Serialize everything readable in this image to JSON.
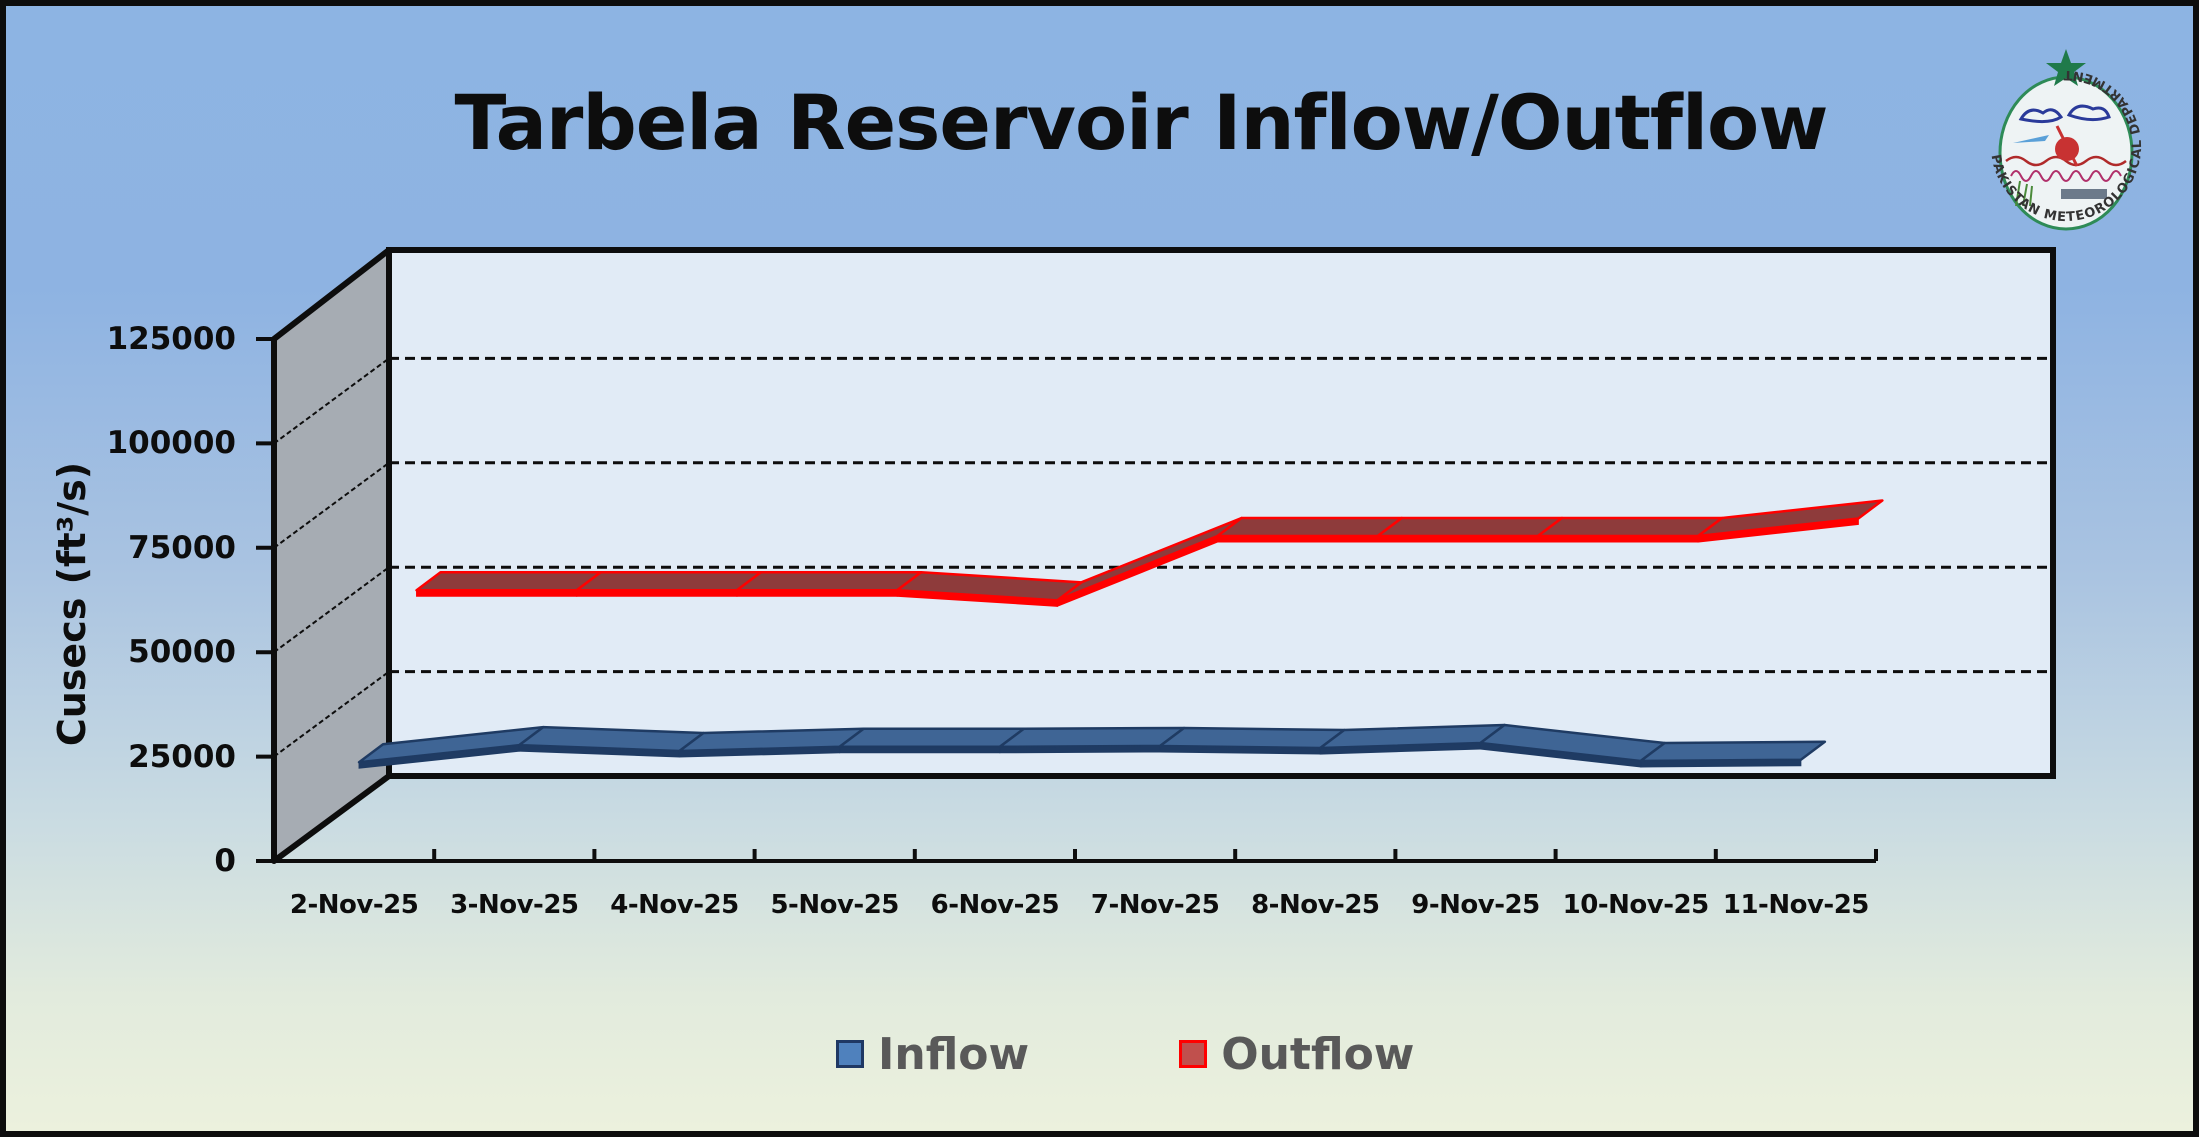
{
  "title": "Tarbela Reservoir Inflow/Outflow",
  "y_axis_label": "Cusecs (ft³/s)",
  "y_ticks": [
    "0",
    "25000",
    "50000",
    "75000",
    "100000",
    "125000"
  ],
  "x_ticks": [
    "2-Nov-25",
    "3-Nov-25",
    "4-Nov-25",
    "5-Nov-25",
    "6-Nov-25",
    "7-Nov-25",
    "8-Nov-25",
    "9-Nov-25",
    "10-Nov-25",
    "11-Nov-25"
  ],
  "legend": [
    {
      "label": "Inflow",
      "fill": "#4f81bd",
      "border": "#1f3864"
    },
    {
      "label": "Outflow",
      "fill": "#c0504d",
      "border": "#ff0000"
    }
  ],
  "logo": {
    "text": "PAKISTAN METEOROLOGICAL DEPARTMENT"
  },
  "colors": {
    "inflow_top": "#3f6595",
    "inflow_edge": "#1f3b63",
    "outflow_top": "#8e3b3b",
    "outflow_edge": "#ff0000",
    "back_wall": "#e1ebf6",
    "side_wall": "#a6acb3"
  },
  "chart_data": {
    "type": "line",
    "variant": "3d-line",
    "title": "Tarbela Reservoir Inflow/Outflow",
    "xlabel": "",
    "ylabel": "Cusecs (ft³/s)",
    "ylim": [
      0,
      125000
    ],
    "y_ticks": [
      0,
      25000,
      50000,
      75000,
      100000,
      125000
    ],
    "grid": "dashed horizontal major gridlines",
    "legend_position": "bottom",
    "categories": [
      "2-Nov-25",
      "3-Nov-25",
      "4-Nov-25",
      "5-Nov-25",
      "6-Nov-25",
      "7-Nov-25",
      "8-Nov-25",
      "9-Nov-25",
      "10-Nov-25",
      "11-Nov-25"
    ],
    "series": [
      {
        "name": "Inflow",
        "values": [
          21000,
          25100,
          23700,
          24700,
          24700,
          24900,
          24400,
          25600,
          21300,
          21600
        ]
      },
      {
        "name": "Outflow",
        "values": [
          52000,
          52000,
          52000,
          52000,
          49600,
          65000,
          65000,
          65000,
          65000,
          69200
        ]
      }
    ]
  }
}
